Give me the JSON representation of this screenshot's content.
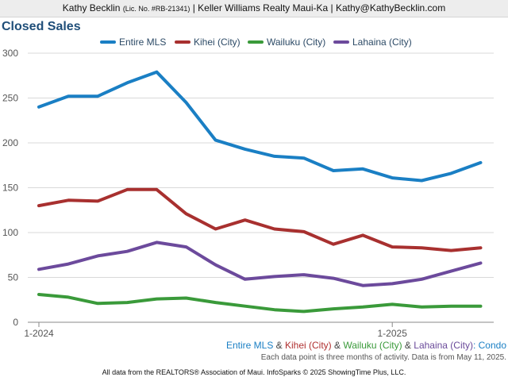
{
  "banner": {
    "agent": "Kathy Becklin",
    "license": "(Lic. No. #RB-21341)",
    "rest": "| Keller Williams Realty Maui-Ka | Kathy@KathyBecklin.com"
  },
  "subtitle": {
    "parts": [
      "Entire MLS",
      " & ",
      "Kihei (City)",
      " & ",
      "Wailuku (City)",
      " & ",
      "Lahaina (City)",
      ": Condo"
    ],
    "colors": [
      "#1a7fc4",
      "#444444",
      "#b03030",
      "#444444",
      "#3a9a3a",
      "#444444",
      "#6a4a9a",
      "#1a7fc4"
    ]
  },
  "note": "Each data point is three months of activity. Data is from May 11, 2025.",
  "footer": "All data from the REALTORS® Association of Maui. InfoSparks © 2025 ShowingTime Plus, LLC.",
  "chart_data": {
    "type": "line",
    "title": "Closed Sales",
    "x": [
      "2024-01",
      "2024-02",
      "2024-03",
      "2024-04",
      "2024-05",
      "2024-06",
      "2024-07",
      "2024-08",
      "2024-09",
      "2024-10",
      "2024-11",
      "2024-12",
      "2025-01",
      "2025-02",
      "2025-03",
      "2025-04"
    ],
    "xticks": [
      {
        "index": 0,
        "label": "1-2024"
      },
      {
        "index": 12,
        "label": "1-2025"
      }
    ],
    "ylim": [
      0,
      300
    ],
    "yticks": [
      0,
      50,
      100,
      150,
      200,
      250,
      300
    ],
    "grid": true,
    "legend": "top",
    "series": [
      {
        "name": "Entire MLS",
        "color": "#1a7fc4",
        "values": [
          240,
          252,
          252,
          267,
          279,
          245,
          203,
          193,
          185,
          183,
          169,
          171,
          161,
          158,
          166,
          178
        ]
      },
      {
        "name": "Kihei (City)",
        "color": "#a8302f",
        "values": [
          130,
          136,
          135,
          148,
          148,
          121,
          104,
          114,
          104,
          101,
          87,
          97,
          84,
          83,
          80,
          83
        ]
      },
      {
        "name": "Wailuku (City)",
        "color": "#3a9a3a",
        "values": [
          31,
          28,
          21,
          22,
          26,
          27,
          22,
          18,
          14,
          12,
          15,
          17,
          20,
          17,
          18,
          18
        ]
      },
      {
        "name": "Lahaina (City)",
        "color": "#6c4a9c",
        "values": [
          59,
          65,
          74,
          79,
          89,
          84,
          64,
          48,
          51,
          53,
          49,
          41,
          43,
          48,
          57,
          66
        ]
      }
    ]
  }
}
